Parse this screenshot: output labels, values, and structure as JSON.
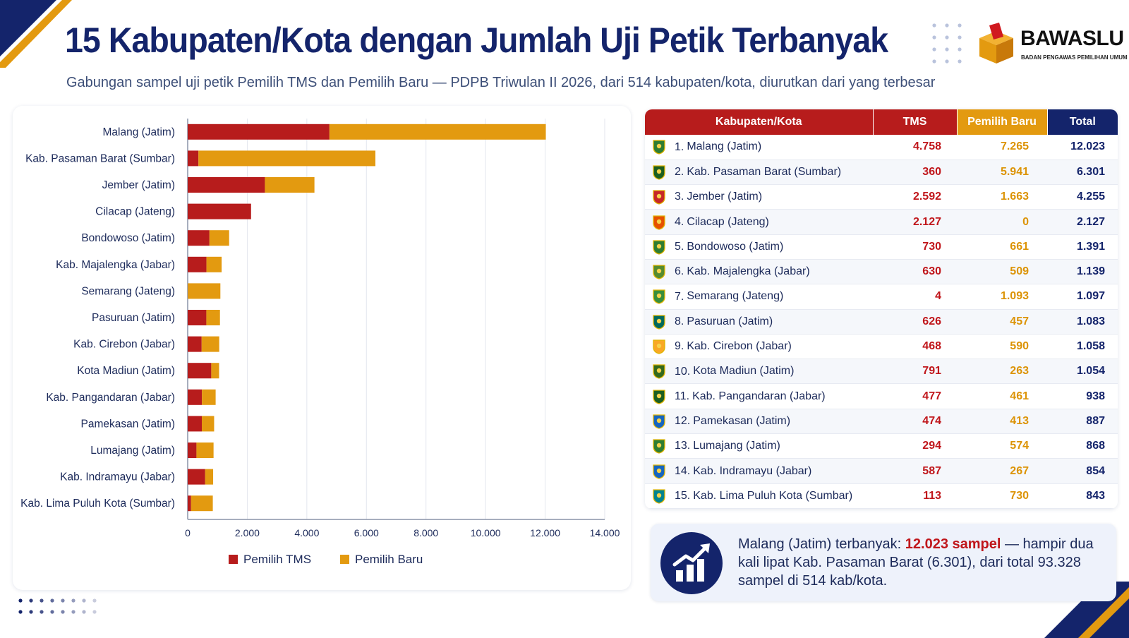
{
  "header": {
    "title": "15 Kabupaten/Kota dengan Jumlah Uji Petik Terbanyak",
    "subtitle": "Gabungan sampel uji petik Pemilih TMS dan Pemilih Baru — PDPB Triwulan II 2026, dari 514 kabupaten/kota, diurutkan dari yang terbesar"
  },
  "logo": {
    "name": "BAWASLU",
    "tagline": "BADAN PENGAWAS PEMILIHAN UMUM"
  },
  "colors": {
    "tms": "#b71c1c",
    "baru": "#e39a10",
    "navy": "#14246b"
  },
  "chart_data": {
    "type": "bar",
    "orientation": "horizontal",
    "stacked": true,
    "categories": [
      "Malang (Jatim)",
      "Kab. Pasaman Barat (Sumbar)",
      "Jember (Jatim)",
      "Cilacap (Jateng)",
      "Bondowoso (Jatim)",
      "Kab. Majalengka (Jabar)",
      "Semarang (Jateng)",
      "Pasuruan (Jatim)",
      "Kab. Cirebon (Jabar)",
      "Kota Madiun (Jatim)",
      "Kab. Pangandaran (Jabar)",
      "Pamekasan (Jatim)",
      "Lumajang (Jatim)",
      "Kab. Indramayu (Jabar)",
      "Kab. Lima Puluh Kota (Sumbar)"
    ],
    "series": [
      {
        "name": "Pemilih TMS",
        "values": [
          4758,
          360,
          2592,
          2127,
          730,
          630,
          4,
          626,
          468,
          791,
          477,
          474,
          294,
          587,
          113
        ]
      },
      {
        "name": "Pemilih Baru",
        "values": [
          7265,
          5941,
          1663,
          0,
          661,
          509,
          1093,
          457,
          590,
          263,
          461,
          413,
          574,
          267,
          730
        ]
      }
    ],
    "xlim": [
      0,
      14000
    ],
    "xticks": [
      "0",
      "2.000",
      "4.000",
      "6.000",
      "8.000",
      "10.000",
      "12.000",
      "14.000"
    ],
    "grid": true,
    "legend": "bottom"
  },
  "table": {
    "headers": [
      "Kabupaten/Kota",
      "TMS",
      "Pemilih Baru",
      "Total"
    ],
    "rows": [
      {
        "rank": "1.",
        "name": "Malang (Jatim)",
        "tms": "4.758",
        "baru": "7.265",
        "total": "12.023"
      },
      {
        "rank": "2.",
        "name": "Kab. Pasaman Barat (Sumbar)",
        "tms": "360",
        "baru": "5.941",
        "total": "6.301"
      },
      {
        "rank": "3.",
        "name": "Jember (Jatim)",
        "tms": "2.592",
        "baru": "1.663",
        "total": "4.255"
      },
      {
        "rank": "4.",
        "name": "Cilacap (Jateng)",
        "tms": "2.127",
        "baru": "0",
        "total": "2.127"
      },
      {
        "rank": "5.",
        "name": "Bondowoso (Jatim)",
        "tms": "730",
        "baru": "661",
        "total": "1.391"
      },
      {
        "rank": "6.",
        "name": "Kab. Majalengka (Jabar)",
        "tms": "630",
        "baru": "509",
        "total": "1.139"
      },
      {
        "rank": "7.",
        "name": "Semarang (Jateng)",
        "tms": "4",
        "baru": "1.093",
        "total": "1.097"
      },
      {
        "rank": "8.",
        "name": "Pasuruan (Jatim)",
        "tms": "626",
        "baru": "457",
        "total": "1.083"
      },
      {
        "rank": "9.",
        "name": "Kab. Cirebon (Jabar)",
        "tms": "468",
        "baru": "590",
        "total": "1.058"
      },
      {
        "rank": "10.",
        "name": "Kota Madiun (Jatim)",
        "tms": "791",
        "baru": "263",
        "total": "1.054"
      },
      {
        "rank": "11.",
        "name": "Kab. Pangandaran (Jabar)",
        "tms": "477",
        "baru": "461",
        "total": "938"
      },
      {
        "rank": "12.",
        "name": "Pamekasan (Jatim)",
        "tms": "474",
        "baru": "413",
        "total": "887"
      },
      {
        "rank": "13.",
        "name": "Lumajang (Jatim)",
        "tms": "294",
        "baru": "574",
        "total": "868"
      },
      {
        "rank": "14.",
        "name": "Kab. Indramayu (Jabar)",
        "tms": "587",
        "baru": "267",
        "total": "854"
      },
      {
        "rank": "15.",
        "name": "Kab. Lima Puluh Kota (Sumbar)",
        "tms": "113",
        "baru": "730",
        "total": "843"
      }
    ]
  },
  "callout": {
    "icon": "trend-chart-icon",
    "text_before": "Malang (Jatim) terbanyak: ",
    "highlight": "12.023 sampel",
    "text_after": " — hampir dua kali lipat Kab. Pasaman Barat (6.301), dari total 93.328 sampel di 514 kab/kota."
  }
}
